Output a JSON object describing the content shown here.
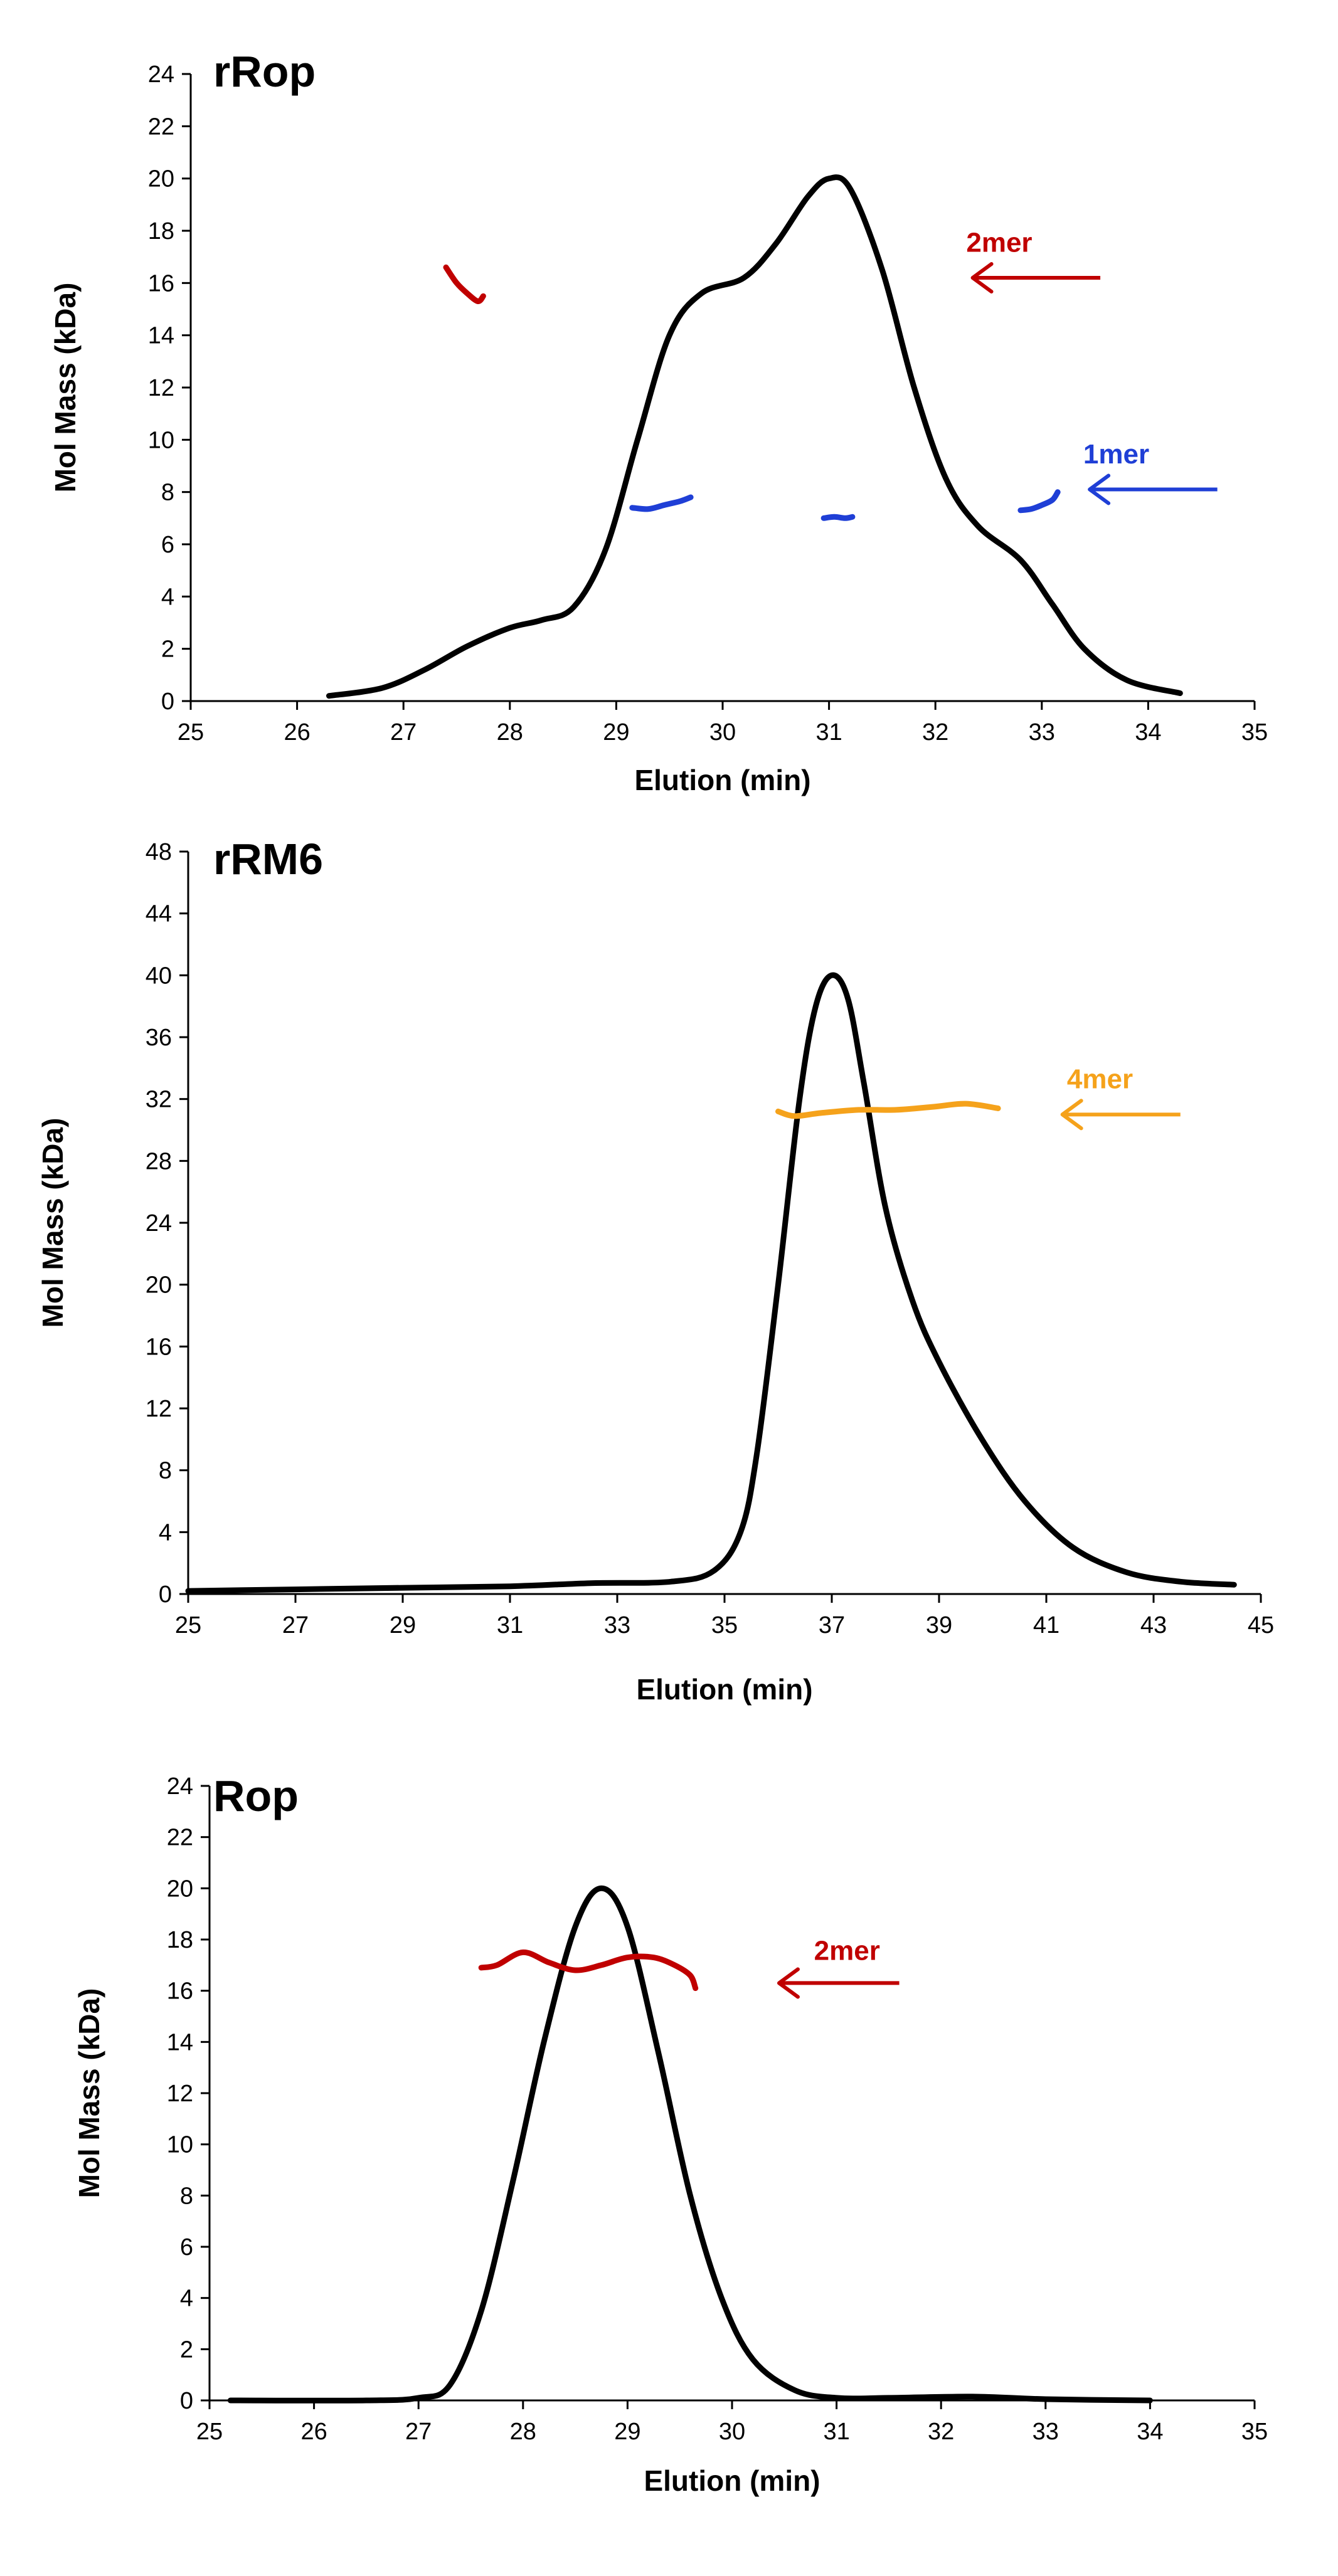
{
  "chart_data": [
    {
      "type": "line",
      "title": "rRop",
      "xlabel": "Elution (min)",
      "ylabel": "Mol Mass (kDa)",
      "xlim": [
        25,
        35
      ],
      "ylim": [
        0,
        24
      ],
      "xticks": [
        25,
        26,
        27,
        28,
        29,
        30,
        31,
        32,
        33,
        34,
        35
      ],
      "yticks": [
        0,
        2,
        4,
        6,
        8,
        10,
        12,
        14,
        16,
        18,
        20,
        22,
        24
      ],
      "series": [
        {
          "name": "signal",
          "color": "#000000",
          "x": [
            26.3,
            26.8,
            27.2,
            27.6,
            28.0,
            28.3,
            28.6,
            28.9,
            29.2,
            29.5,
            29.8,
            30.2,
            30.5,
            30.8,
            31.0,
            31.2,
            31.5,
            31.8,
            32.1,
            32.4,
            32.8,
            33.1,
            33.4,
            33.8,
            34.3
          ],
          "values": [
            0.2,
            0.5,
            1.2,
            2.1,
            2.8,
            3.1,
            3.6,
            5.8,
            10.0,
            14.0,
            15.6,
            16.2,
            17.5,
            19.3,
            20.0,
            19.6,
            16.5,
            12.0,
            8.5,
            6.7,
            5.4,
            3.7,
            2.0,
            0.8,
            0.3
          ],
          "stroke_width": 9
        },
        {
          "name": "2mer mass",
          "color": "#c00000",
          "x": [
            27.4,
            27.5,
            27.6,
            27.7,
            27.75
          ],
          "values": [
            16.6,
            16.0,
            15.6,
            15.3,
            15.5
          ],
          "stroke_width": 9
        },
        {
          "name": "1mer mass a",
          "color": "#1f3fd6",
          "x": [
            29.15,
            29.3,
            29.45,
            29.6,
            29.7
          ],
          "values": [
            7.4,
            7.35,
            7.5,
            7.65,
            7.8
          ],
          "stroke_width": 9
        },
        {
          "name": "1mer mass b",
          "color": "#1f3fd6",
          "x": [
            30.95,
            31.05,
            31.15,
            31.22
          ],
          "values": [
            7.0,
            7.05,
            7.0,
            7.05
          ],
          "stroke_width": 9
        },
        {
          "name": "1mer mass c",
          "color": "#1f3fd6",
          "x": [
            32.8,
            32.9,
            33.0,
            33.1,
            33.15
          ],
          "values": [
            7.3,
            7.35,
            7.5,
            7.7,
            8.0
          ],
          "stroke_width": 9
        }
      ],
      "annotations": [
        {
          "text": "2mer",
          "color": "#c00000",
          "x": 32.6,
          "y": 17.2,
          "arrow_from": 33.55,
          "arrow_to": 32.35,
          "arrow_y": 16.2
        },
        {
          "text": "1mer",
          "color": "#1f3fd6",
          "x": 33.7,
          "y": 9.1,
          "arrow_from": 34.65,
          "arrow_to": 33.45,
          "arrow_y": 8.1
        }
      ]
    },
    {
      "type": "line",
      "title": "rRM6",
      "xlabel": "Elution (min)",
      "ylabel": "Mol Mass (kDa)",
      "xlim": [
        25,
        45
      ],
      "ylim": [
        0,
        48
      ],
      "xticks": [
        25,
        27,
        29,
        31,
        33,
        35,
        37,
        39,
        41,
        43,
        45
      ],
      "yticks": [
        0,
        4,
        8,
        12,
        16,
        20,
        24,
        28,
        32,
        36,
        40,
        44,
        48
      ],
      "series": [
        {
          "name": "signal",
          "color": "#000000",
          "x": [
            25.0,
            27.0,
            29.0,
            31.0,
            32.5,
            34.0,
            34.8,
            35.3,
            35.6,
            36.0,
            36.4,
            36.7,
            37.0,
            37.3,
            37.6,
            38.0,
            38.5,
            39.0,
            39.8,
            40.6,
            41.5,
            42.5,
            43.5,
            44.5
          ],
          "values": [
            0.2,
            0.3,
            0.4,
            0.5,
            0.7,
            0.8,
            1.5,
            4.0,
            9.0,
            20.0,
            32.0,
            38.0,
            40.0,
            38.5,
            33.0,
            25.0,
            19.0,
            15.0,
            10.0,
            6.0,
            3.0,
            1.4,
            0.8,
            0.6
          ],
          "stroke_width": 9
        },
        {
          "name": "4mer mass",
          "color": "#f5a21b",
          "x": [
            36.0,
            36.3,
            36.8,
            37.5,
            38.2,
            38.9,
            39.5,
            40.1
          ],
          "values": [
            31.2,
            30.9,
            31.1,
            31.3,
            31.3,
            31.5,
            31.7,
            31.4
          ],
          "stroke_width": 9
        }
      ],
      "annotations": [
        {
          "text": "4mer",
          "color": "#f5a21b",
          "x": 42.0,
          "y": 32.7,
          "arrow_from": 43.5,
          "arrow_to": 41.3,
          "arrow_y": 31.0
        }
      ]
    },
    {
      "type": "line",
      "title": "Rop",
      "xlabel": "Elution (min)",
      "ylabel": "Mol Mass (kDa)",
      "xlim": [
        25,
        35
      ],
      "ylim": [
        0,
        24
      ],
      "xticks": [
        25,
        26,
        27,
        28,
        29,
        30,
        31,
        32,
        33,
        34,
        35
      ],
      "yticks": [
        0,
        2,
        4,
        6,
        8,
        10,
        12,
        14,
        16,
        18,
        20,
        22,
        24
      ],
      "series": [
        {
          "name": "signal",
          "color": "#000000",
          "x": [
            25.2,
            26.5,
            27.0,
            27.3,
            27.6,
            27.9,
            28.2,
            28.5,
            28.75,
            29.0,
            29.3,
            29.6,
            29.9,
            30.2,
            30.6,
            31.0,
            31.5,
            32.3,
            33.0,
            34.0
          ],
          "values": [
            0.0,
            0.0,
            0.1,
            0.6,
            3.5,
            8.5,
            14.0,
            18.5,
            20.0,
            18.5,
            13.5,
            8.0,
            4.0,
            1.6,
            0.4,
            0.1,
            0.1,
            0.15,
            0.05,
            0.0
          ],
          "stroke_width": 9
        },
        {
          "name": "2mer mass",
          "color": "#c00000",
          "x": [
            27.6,
            27.75,
            28.0,
            28.25,
            28.5,
            28.75,
            29.0,
            29.25,
            29.45,
            29.6,
            29.65
          ],
          "values": [
            16.9,
            17.0,
            17.5,
            17.1,
            16.8,
            17.0,
            17.3,
            17.3,
            17.0,
            16.6,
            16.1
          ],
          "stroke_width": 9
        }
      ],
      "annotations": [
        {
          "text": "2mer",
          "color": "#c00000",
          "x": 31.1,
          "y": 17.2,
          "arrow_from": 31.6,
          "arrow_to": 30.45,
          "arrow_y": 16.3
        }
      ]
    }
  ]
}
